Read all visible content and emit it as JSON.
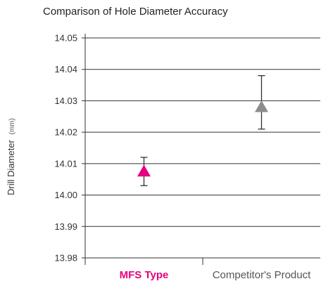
{
  "chart_data": {
    "type": "scatter",
    "title": "Comparison of Hole Diameter Accuracy",
    "ylabel": "Drill Diameter",
    "ylabel_unit": "(mm)",
    "xlabel": "",
    "ylim": [
      13.98,
      14.05
    ],
    "yticks": [
      "14.05",
      "14.04",
      "14.03",
      "14.02",
      "14.01",
      "14.00",
      "13.99",
      "13.98"
    ],
    "grid": "horizontal",
    "categories": [
      "MFS Type",
      "Competitor's Product"
    ],
    "points": [
      {
        "category": "MFS Type",
        "value": 14.0075,
        "err_low": 14.003,
        "err_high": 14.012,
        "color": "#e6007e",
        "label_color": "#e6007e",
        "label_bold": true,
        "marker": "triangle"
      },
      {
        "category": "Competitor's Product",
        "value": 14.028,
        "err_low": 14.021,
        "err_high": 14.038,
        "color": "#8c8c8c",
        "label_color": "#555555",
        "label_bold": false,
        "marker": "triangle"
      }
    ],
    "colors": {
      "axis": "#333333",
      "grid": "#333333",
      "errorbar": "#333333"
    }
  }
}
